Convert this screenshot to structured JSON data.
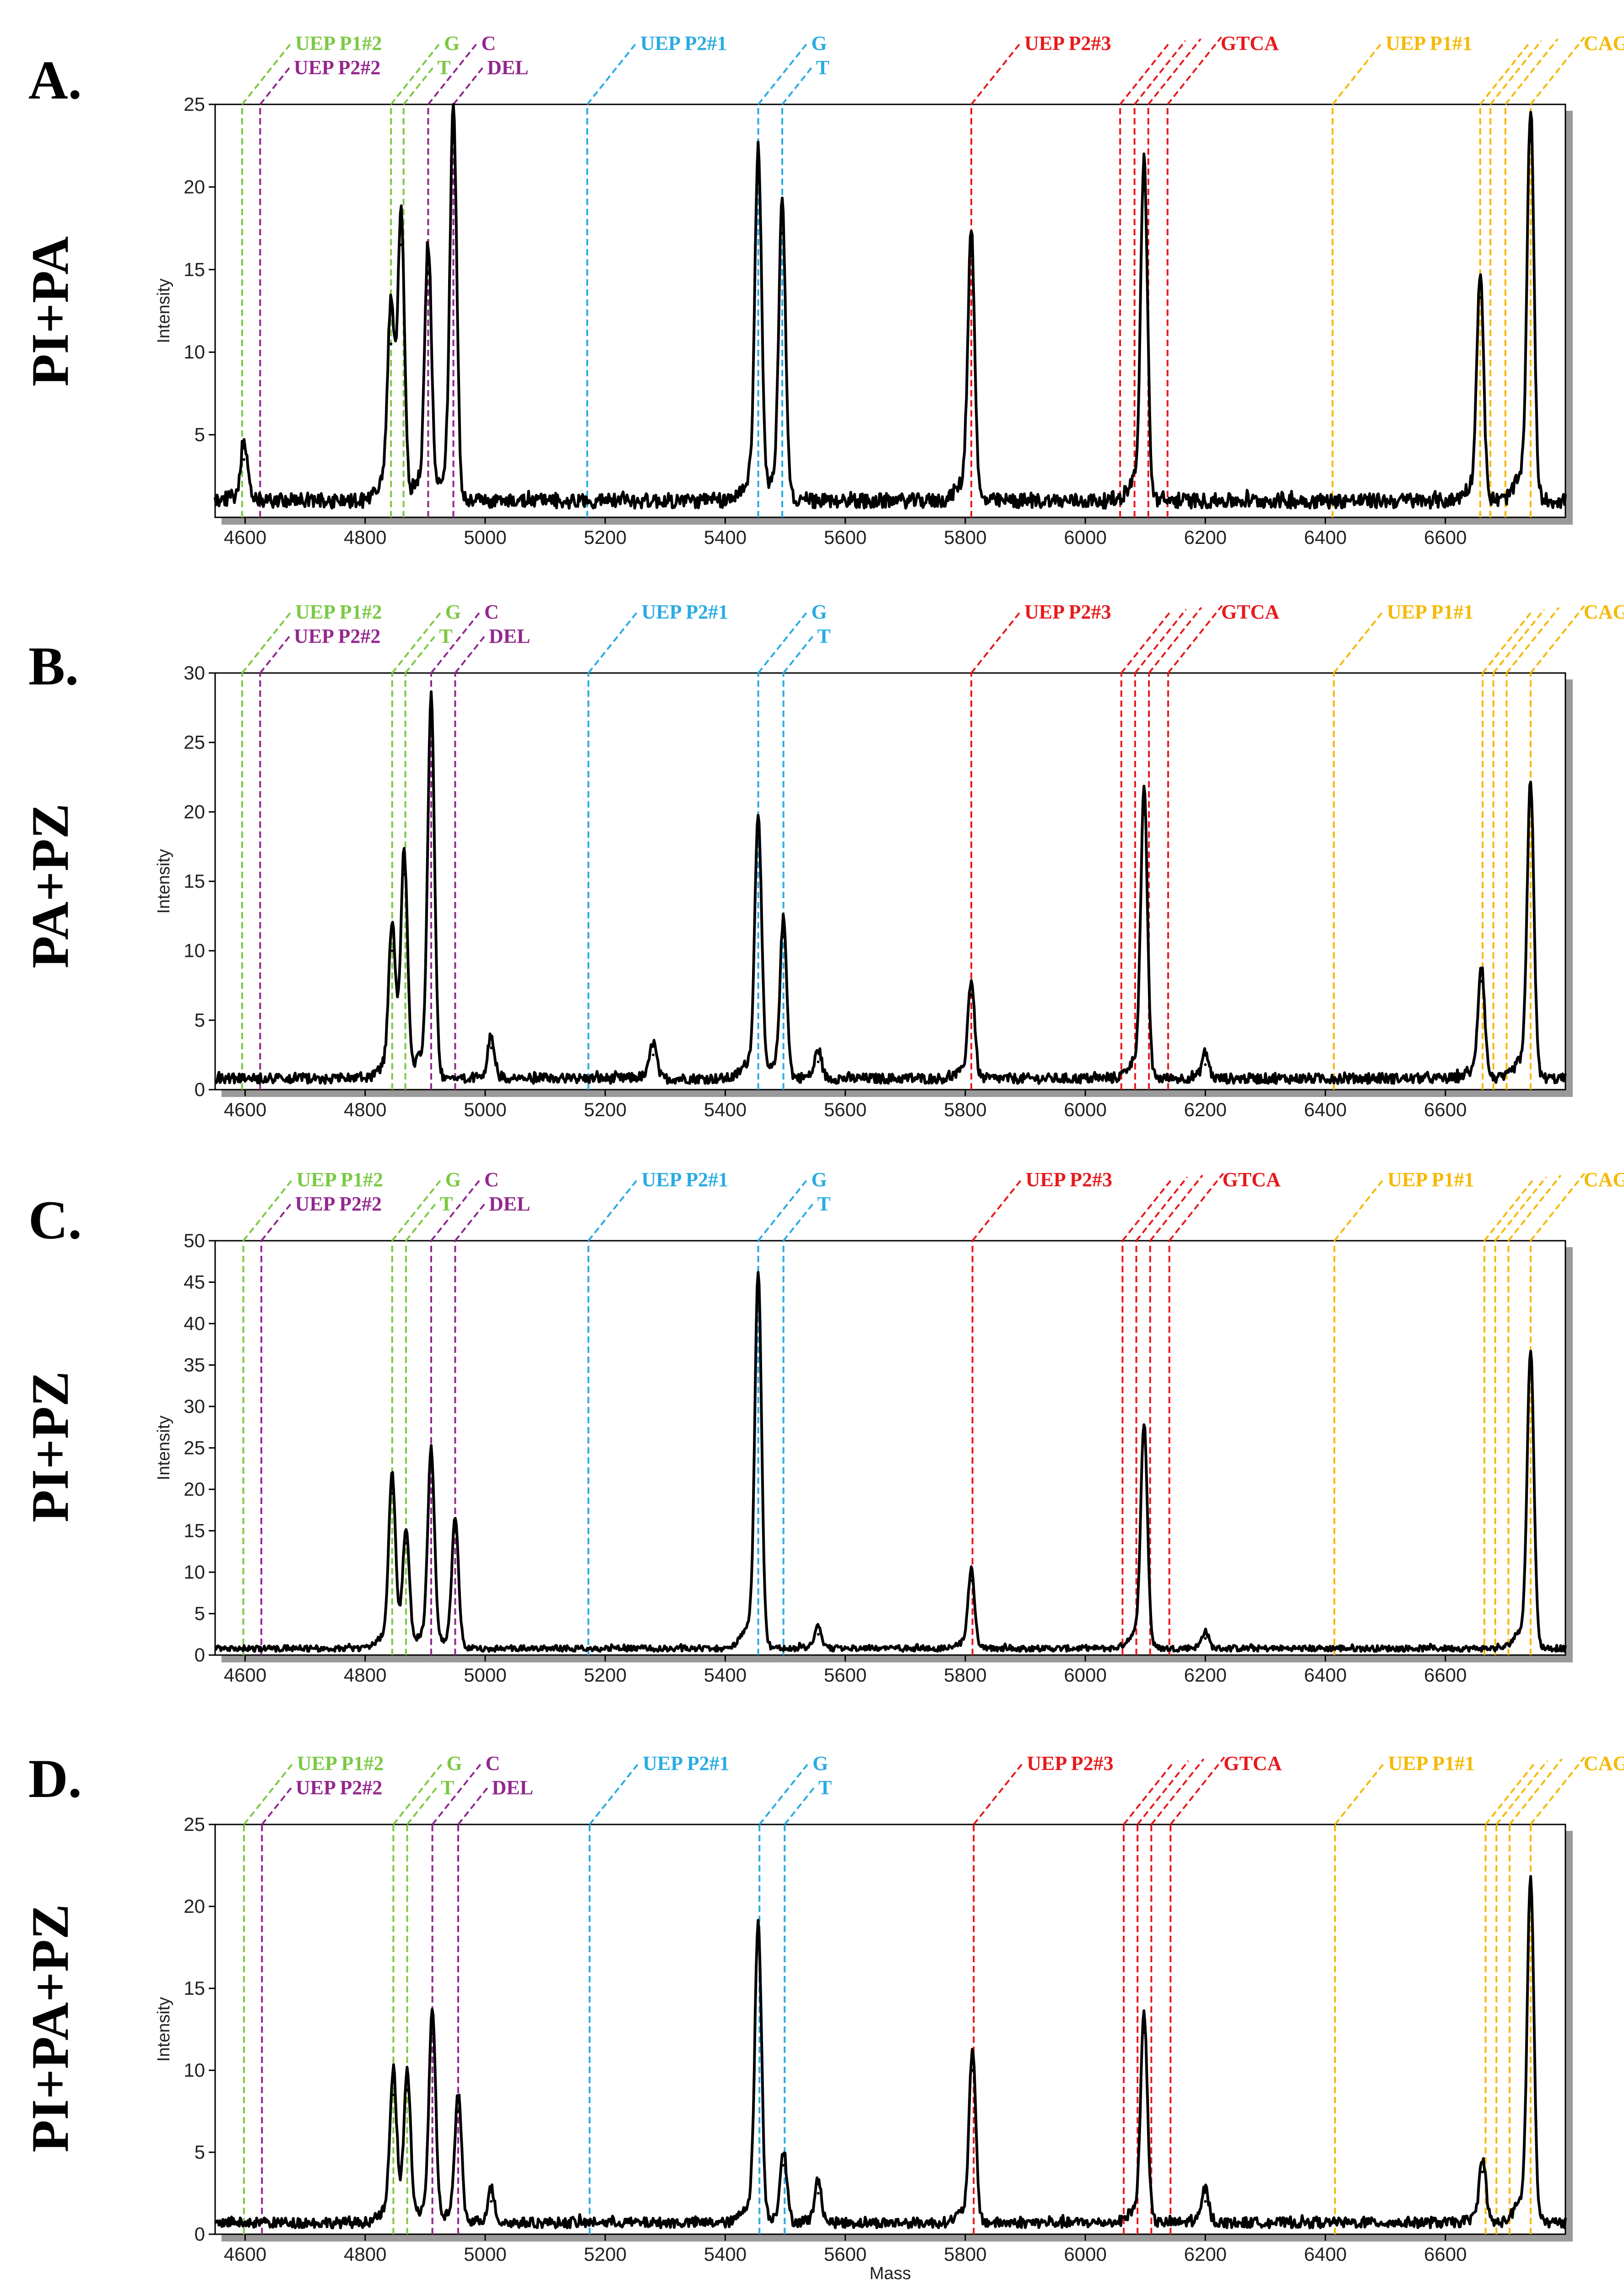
{
  "figure": {
    "xlabel": "Mass",
    "colors": {
      "green": "#7ac943",
      "purple": "#93278f",
      "blue": "#29abe2",
      "red": "#e8191c",
      "orange": "#f5b800",
      "trace": "#000000"
    }
  },
  "chart_data": [
    {
      "type": "line",
      "letter": "A.",
      "title": "PI+PA",
      "xlabel": "",
      "ylabel": "Intensity",
      "xlim": [
        4550,
        6800
      ],
      "ylim": [
        0,
        25
      ],
      "xticks": [
        4600,
        4800,
        5000,
        5200,
        5400,
        5600,
        5800,
        6000,
        6200,
        6400,
        6600
      ],
      "yticks": [
        5,
        10,
        15,
        20,
        25
      ],
      "baseline": 1.0,
      "peaks": [
        {
          "mass": 4598,
          "intensity": 3.5
        },
        {
          "mass": 4843,
          "intensity": 10.5
        },
        {
          "mass": 4860,
          "intensity": 16.5
        },
        {
          "mass": 4905,
          "intensity": 14.8
        },
        {
          "mass": 4947,
          "intensity": 22.8
        },
        {
          "mass": 5455,
          "intensity": 20.3
        },
        {
          "mass": 5495,
          "intensity": 17.2
        },
        {
          "mass": 5810,
          "intensity": 15.8
        },
        {
          "mass": 6098,
          "intensity": 19.8
        },
        {
          "mass": 6658,
          "intensity": 13.3
        },
        {
          "mass": 6742,
          "intensity": 22.8
        }
      ],
      "markers": [
        {
          "label": "UEP P1#2",
          "group": "green",
          "mass": 4595,
          "row": 1
        },
        {
          "label": "UEP P2#2",
          "group": "purple",
          "mass": 4625,
          "row": 2
        },
        {
          "label": "G",
          "group": "green",
          "mass": 4843,
          "row": 1
        },
        {
          "label": "T",
          "group": "green",
          "mass": 4864,
          "row": 2
        },
        {
          "label": "C",
          "group": "purple",
          "mass": 4905,
          "row": 1
        },
        {
          "label": "DEL",
          "group": "purple",
          "mass": 4947,
          "row": 2
        },
        {
          "label": "UEP P2#1",
          "group": "blue",
          "mass": 5170,
          "row": 1
        },
        {
          "label": "G",
          "group": "blue",
          "mass": 5455,
          "row": 1
        },
        {
          "label": "T",
          "group": "blue",
          "mass": 5495,
          "row": 2
        },
        {
          "label": "UEP P2#3",
          "group": "red",
          "mass": 5810,
          "row": 1
        },
        {
          "label": "GTCA",
          "group": "red",
          "mass": 6058,
          "row": 1,
          "extra": [
            6082,
            6105,
            6137
          ]
        },
        {
          "label": "UEP P1#1",
          "group": "orange",
          "mass": 6412,
          "row": 1
        },
        {
          "label": "CAGT",
          "group": "orange",
          "mass": 6658,
          "row": 1,
          "extra": [
            6675,
            6700,
            6742
          ]
        }
      ]
    },
    {
      "type": "line",
      "letter": "B.",
      "title": "PA+PZ",
      "xlabel": "",
      "ylabel": "Intensity",
      "xlim": [
        4550,
        6800
      ],
      "ylim": [
        0,
        30
      ],
      "xticks": [
        4600,
        4800,
        5000,
        5200,
        5400,
        5600,
        5800,
        6000,
        6200,
        6400,
        6600
      ],
      "yticks": [
        0,
        5,
        10,
        15,
        20,
        25,
        30
      ],
      "baseline": 0.8,
      "peaks": [
        {
          "mass": 4845,
          "intensity": 10.0
        },
        {
          "mass": 4865,
          "intensity": 15.5
        },
        {
          "mass": 4910,
          "intensity": 26.5
        },
        {
          "mass": 5010,
          "intensity": 3.0
        },
        {
          "mass": 5280,
          "intensity": 2.5
        },
        {
          "mass": 5455,
          "intensity": 18.3
        },
        {
          "mass": 5497,
          "intensity": 11.0
        },
        {
          "mass": 5555,
          "intensity": 2.0
        },
        {
          "mass": 5810,
          "intensity": 6.8
        },
        {
          "mass": 6098,
          "intensity": 19.8
        },
        {
          "mass": 6200,
          "intensity": 1.8
        },
        {
          "mass": 6660,
          "intensity": 7.8
        },
        {
          "mass": 6742,
          "intensity": 20.5
        }
      ],
      "markers": [
        {
          "label": "UEP P1#2",
          "group": "green",
          "mass": 4595,
          "row": 1
        },
        {
          "label": "UEP P2#2",
          "group": "purple",
          "mass": 4625,
          "row": 2
        },
        {
          "label": "G",
          "group": "green",
          "mass": 4845,
          "row": 1
        },
        {
          "label": "T",
          "group": "green",
          "mass": 4867,
          "row": 2
        },
        {
          "label": "C",
          "group": "purple",
          "mass": 4910,
          "row": 1
        },
        {
          "label": "DEL",
          "group": "purple",
          "mass": 4950,
          "row": 2
        },
        {
          "label": "UEP P2#1",
          "group": "blue",
          "mass": 5172,
          "row": 1
        },
        {
          "label": "G",
          "group": "blue",
          "mass": 5455,
          "row": 1
        },
        {
          "label": "T",
          "group": "blue",
          "mass": 5497,
          "row": 2
        },
        {
          "label": "UEP P2#3",
          "group": "red",
          "mass": 5810,
          "row": 1
        },
        {
          "label": "GTCA",
          "group": "red",
          "mass": 6060,
          "row": 1,
          "extra": [
            6083,
            6106,
            6138
          ]
        },
        {
          "label": "UEP P1#1",
          "group": "orange",
          "mass": 6414,
          "row": 1
        },
        {
          "label": "CAGT",
          "group": "orange",
          "mass": 6662,
          "row": 1,
          "extra": [
            6680,
            6702,
            6742
          ]
        }
      ]
    },
    {
      "type": "line",
      "letter": "C.",
      "title": "PI+PZ",
      "xlabel": "",
      "ylabel": "Intensity",
      "xlim": [
        4550,
        6800
      ],
      "ylim": [
        0,
        50
      ],
      "xticks": [
        4600,
        4800,
        5000,
        5200,
        5400,
        5600,
        5800,
        6000,
        6200,
        6400,
        6600
      ],
      "yticks": [
        0,
        5,
        10,
        15,
        20,
        25,
        30,
        35,
        40,
        45,
        50
      ],
      "baseline": 0.8,
      "peaks": [
        {
          "mass": 4845,
          "intensity": 19.5
        },
        {
          "mass": 4868,
          "intensity": 13.5
        },
        {
          "mass": 4910,
          "intensity": 23.0
        },
        {
          "mass": 4950,
          "intensity": 15.0
        },
        {
          "mass": 5455,
          "intensity": 43.5
        },
        {
          "mass": 5555,
          "intensity": 2.5
        },
        {
          "mass": 5810,
          "intensity": 9.0
        },
        {
          "mass": 6098,
          "intensity": 26.0
        },
        {
          "mass": 6200,
          "intensity": 2.0
        },
        {
          "mass": 6742,
          "intensity": 34.5
        }
      ],
      "markers": [
        {
          "label": "UEP P1#2",
          "group": "green",
          "mass": 4597,
          "row": 1
        },
        {
          "label": "UEP P2#2",
          "group": "purple",
          "mass": 4627,
          "row": 2
        },
        {
          "label": "G",
          "group": "green",
          "mass": 4845,
          "row": 1
        },
        {
          "label": "T",
          "group": "green",
          "mass": 4868,
          "row": 2
        },
        {
          "label": "C",
          "group": "purple",
          "mass": 4910,
          "row": 1
        },
        {
          "label": "DEL",
          "group": "purple",
          "mass": 4950,
          "row": 2
        },
        {
          "label": "UEP P2#1",
          "group": "blue",
          "mass": 5172,
          "row": 1
        },
        {
          "label": "G",
          "group": "blue",
          "mass": 5455,
          "row": 1
        },
        {
          "label": "T",
          "group": "blue",
          "mass": 5497,
          "row": 2
        },
        {
          "label": "UEP P2#3",
          "group": "red",
          "mass": 5812,
          "row": 1
        },
        {
          "label": "GTCA",
          "group": "red",
          "mass": 6062,
          "row": 1,
          "extra": [
            6085,
            6108,
            6140
          ]
        },
        {
          "label": "UEP P1#1",
          "group": "orange",
          "mass": 6415,
          "row": 1
        },
        {
          "label": "CAGT",
          "group": "orange",
          "mass": 6665,
          "row": 1,
          "extra": [
            6683,
            6705,
            6742
          ]
        }
      ]
    },
    {
      "type": "line",
      "letter": "D.",
      "title": "PI+PA+PZ",
      "xlabel": "Mass",
      "ylabel": "Intensity",
      "xlim": [
        4550,
        6800
      ],
      "ylim": [
        0,
        25
      ],
      "xticks": [
        4600,
        4800,
        5000,
        5200,
        5400,
        5600,
        5800,
        6000,
        6200,
        6400,
        6600
      ],
      "yticks": [
        0,
        5,
        10,
        15,
        20,
        25
      ],
      "baseline": 0.7,
      "peaks": [
        {
          "mass": 4847,
          "intensity": 8.5
        },
        {
          "mass": 4870,
          "intensity": 8.8
        },
        {
          "mass": 4912,
          "intensity": 12.2
        },
        {
          "mass": 4955,
          "intensity": 7.5
        },
        {
          "mass": 5010,
          "intensity": 2.0
        },
        {
          "mass": 5455,
          "intensity": 17.5
        },
        {
          "mass": 5497,
          "intensity": 4.2
        },
        {
          "mass": 5555,
          "intensity": 2.5
        },
        {
          "mass": 5812,
          "intensity": 10.0
        },
        {
          "mass": 6098,
          "intensity": 12.3
        },
        {
          "mass": 6200,
          "intensity": 2.0
        },
        {
          "mass": 6662,
          "intensity": 3.8
        },
        {
          "mass": 6742,
          "intensity": 20.2
        }
      ],
      "markers": [
        {
          "label": "UEP P1#2",
          "group": "green",
          "mass": 4598,
          "row": 1
        },
        {
          "label": "UEP P2#2",
          "group": "purple",
          "mass": 4628,
          "row": 2
        },
        {
          "label": "G",
          "group": "green",
          "mass": 4847,
          "row": 1
        },
        {
          "label": "T",
          "group": "green",
          "mass": 4870,
          "row": 2
        },
        {
          "label": "C",
          "group": "purple",
          "mass": 4912,
          "row": 1
        },
        {
          "label": "DEL",
          "group": "purple",
          "mass": 4955,
          "row": 2
        },
        {
          "label": "UEP P2#1",
          "group": "blue",
          "mass": 5174,
          "row": 1
        },
        {
          "label": "G",
          "group": "blue",
          "mass": 5457,
          "row": 1
        },
        {
          "label": "T",
          "group": "blue",
          "mass": 5499,
          "row": 2
        },
        {
          "label": "UEP P2#3",
          "group": "red",
          "mass": 5814,
          "row": 1
        },
        {
          "label": "GTCA",
          "group": "red",
          "mass": 6064,
          "row": 1,
          "extra": [
            6087,
            6110,
            6142
          ]
        },
        {
          "label": "UEP P1#1",
          "group": "orange",
          "mass": 6416,
          "row": 1
        },
        {
          "label": "CAGT",
          "group": "orange",
          "mass": 6667,
          "row": 1,
          "extra": [
            6685,
            6707,
            6742
          ]
        }
      ]
    }
  ]
}
